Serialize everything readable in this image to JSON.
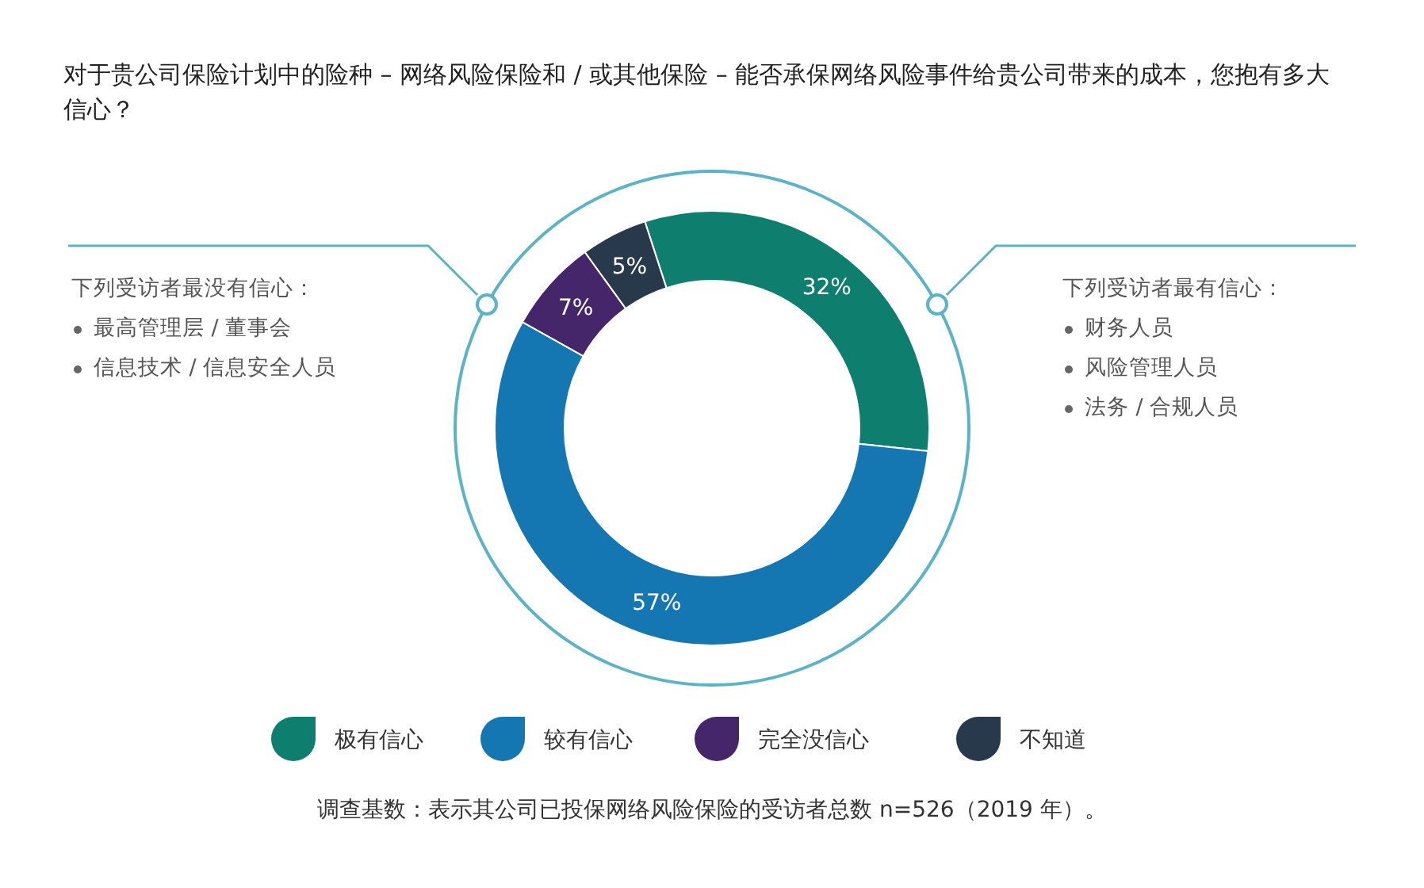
{
  "chart_data": {
    "type": "donut",
    "title": "对于贵公司保险计划中的险种 – 网络风险保险和 / 或其他保险 – 能否承保网络风险事件给贵公司带来的成本，您抱有多大信心？",
    "categories": [
      "极有信心",
      "较有信心",
      "完全没信心",
      "不知道"
    ],
    "values": [
      32,
      57,
      7,
      5
    ],
    "value_labels": [
      "32%",
      "57%",
      "7%",
      "5%"
    ],
    "colors": [
      "#0e7f6e",
      "#1477b1",
      "#45266b",
      "#27394a"
    ],
    "legend": "bottom",
    "annotations": [
      "下列受访者最没有信心：",
      "最高管理层 / 董事会",
      "信息技术 / 信息安全人员",
      "下列受访者最有信心：",
      "财务人员",
      "风险管理人员",
      "法务 / 合规人员",
      "调查基数：表示其公司已投保网络风险保险的受访者总数 n=526（2019 年）。"
    ]
  }
}
